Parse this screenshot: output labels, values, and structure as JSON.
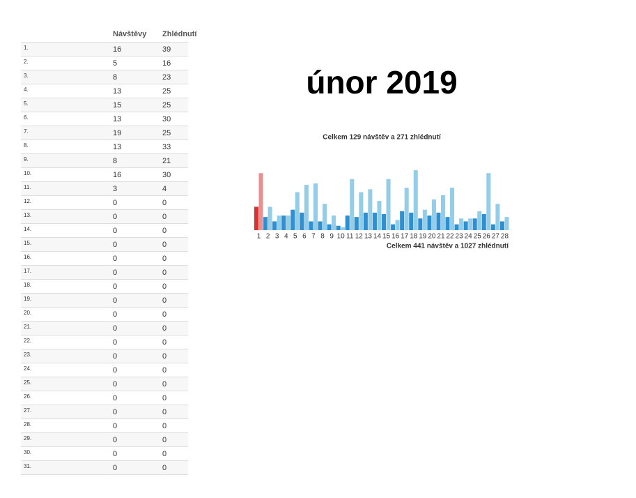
{
  "table": {
    "headers": [
      "Návštěvy",
      "Zhlédnutí"
    ],
    "rows": [
      [
        "1.",
        16,
        39
      ],
      [
        "2.",
        5,
        16
      ],
      [
        "3.",
        8,
        23
      ],
      [
        "4.",
        13,
        25
      ],
      [
        "5.",
        15,
        25
      ],
      [
        "6.",
        13,
        30
      ],
      [
        "7.",
        19,
        25
      ],
      [
        "8.",
        13,
        33
      ],
      [
        "9.",
        8,
        21
      ],
      [
        "10.",
        16,
        30
      ],
      [
        "11.",
        3,
        4
      ],
      [
        "12.",
        0,
        0
      ],
      [
        "13.",
        0,
        0
      ],
      [
        "14.",
        0,
        0
      ],
      [
        "15.",
        0,
        0
      ],
      [
        "16.",
        0,
        0
      ],
      [
        "17.",
        0,
        0
      ],
      [
        "18.",
        0,
        0
      ],
      [
        "19.",
        0,
        0
      ],
      [
        "20.",
        0,
        0
      ],
      [
        "21.",
        0,
        0
      ],
      [
        "22.",
        0,
        0
      ],
      [
        "23.",
        0,
        0
      ],
      [
        "24.",
        0,
        0
      ],
      [
        "25.",
        0,
        0
      ],
      [
        "26.",
        0,
        0
      ],
      [
        "27.",
        0,
        0
      ],
      [
        "28.",
        0,
        0
      ],
      [
        "29.",
        0,
        0
      ],
      [
        "30.",
        0,
        0
      ],
      [
        "31.",
        0,
        0
      ]
    ]
  },
  "header": {
    "title": "únor 2019"
  },
  "chart_data": {
    "type": "bar",
    "subtitle": "Celkem 129 návštěv a 271 zhlédnutí",
    "footer": "Celkem 441 návštěv a 1027 zhlédnutí",
    "categories": [
      "1",
      "2",
      "3",
      "4",
      "5",
      "6",
      "7",
      "8",
      "9",
      "10",
      "11",
      "12",
      "13",
      "14",
      "15",
      "16",
      "17",
      "18",
      "19",
      "20",
      "21",
      "22",
      "23",
      "24",
      "25",
      "26",
      "27",
      "28"
    ],
    "highlight": "1",
    "series": [
      {
        "color": "#2f8fd1",
        "highlight_color": "#d93030",
        "values": [
          16,
          9,
          6,
          10,
          14,
          12,
          6,
          6,
          4,
          3,
          10,
          9,
          12,
          12,
          11,
          4,
          13,
          12,
          8,
          10,
          12,
          9,
          4,
          6,
          8,
          11,
          4,
          6
        ]
      },
      {
        "color": "#94cde8",
        "highlight_color": "#e89090",
        "values": [
          39,
          16,
          10,
          10,
          26,
          31,
          32,
          18,
          10,
          2,
          35,
          26,
          28,
          20,
          35,
          7,
          29,
          41,
          14,
          21,
          24,
          29,
          8,
          8,
          13,
          39,
          18,
          9
        ]
      }
    ],
    "ylim": [
      0,
      42
    ]
  }
}
